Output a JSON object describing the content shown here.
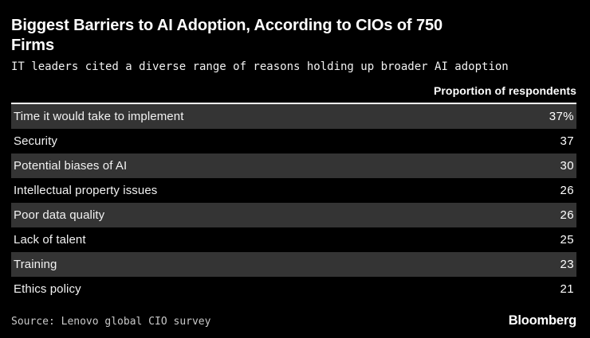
{
  "header": {
    "title": "Biggest Barriers to AI Adoption, According to CIOs of 750\nFirms",
    "subtitle": "IT leaders cited a diverse range of reasons holding up broader AI adoption"
  },
  "table": {
    "column_header": "Proportion of respondents"
  },
  "chart_data": {
    "type": "table",
    "title": "Biggest Barriers to AI Adoption, According to CIOs of 750 Firms",
    "subtitle": "IT leaders cited a diverse range of reasons holding up broader AI adoption",
    "value_column_header": "Proportion of respondents",
    "unit": "percent of respondents",
    "categories": [
      "Time it would take to implement",
      "Security",
      "Potential biases of AI",
      "Intellectual property issues",
      "Poor data quality",
      "Lack of talent",
      "Training",
      "Ethics policy"
    ],
    "values": [
      37,
      37,
      30,
      26,
      26,
      25,
      23,
      21
    ],
    "value_labels": [
      "37%",
      "37",
      "30",
      "26",
      "26",
      "25",
      "23",
      "21"
    ],
    "layout": "zebra-striped rows, values right-aligned, no gridlines",
    "source": "Source: Lenovo global CIO survey",
    "brand": "Bloomberg"
  },
  "colors": {
    "background": "#000000",
    "row_stripe": "#343434",
    "text_primary": "#ffffff",
    "text_secondary": "#f2f2f2",
    "source_text": "#c9c9c9",
    "header_rule": "#ffffff"
  },
  "footer": {
    "source": "Source: Lenovo global CIO survey",
    "brand": "Bloomberg"
  }
}
